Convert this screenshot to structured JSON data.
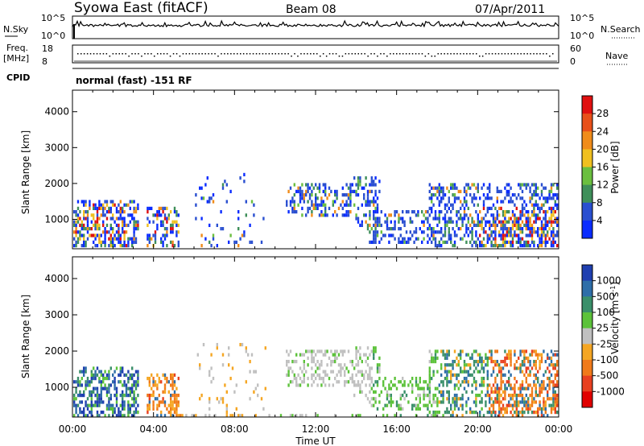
{
  "header": {
    "title": "Syowa East (fitACF)",
    "beam": "Beam 08",
    "date": "07/Apr/2011"
  },
  "top_panels": {
    "nsky_label": "N.Sky",
    "nsky_scale_top": "10^5",
    "nsky_scale_bottom": "10^0",
    "nsearch_label": "N.Search",
    "nsearch_scale_top": "10^5",
    "nsearch_scale_bottom": "10^0",
    "freq_label_line1": "Freq.",
    "freq_label_line2": "[MHz]",
    "freq_scale_top": "18",
    "freq_scale_bottom": "8",
    "nave_label": "Nave",
    "nave_scale_top": "60",
    "nave_scale_bottom": "0",
    "cpid_label": "CPID",
    "cpid_value": "normal (fast) -151 RF"
  },
  "chart_data": [
    {
      "type": "heatmap",
      "name": "power-panel",
      "ylabel": "Slant Range [km]",
      "y_ticks": [
        "1000",
        "2000",
        "3000",
        "4000"
      ],
      "ylim": [
        180,
        4600
      ],
      "xlim": [
        0,
        24
      ],
      "colorbar": {
        "label": "Power [dB]",
        "ticks": [
          "4",
          "8",
          "12",
          "16",
          "20",
          "24",
          "28"
        ],
        "colors": [
          "#0a2cff",
          "#2a4fd0",
          "#3f8f5a",
          "#6bbf3f",
          "#f0c020",
          "#f08c1a",
          "#e8501a",
          "#e01010"
        ]
      }
    },
    {
      "type": "heatmap",
      "name": "velocity-panel",
      "ylabel": "Slant Range [km]",
      "y_ticks": [
        "1000",
        "2000",
        "3000",
        "4000"
      ],
      "ylim": [
        180,
        4600
      ],
      "xlim": [
        0,
        24
      ],
      "xlabel": "Time UT",
      "x_ticks": [
        "00:00",
        "04:00",
        "08:00",
        "12:00",
        "16:00",
        "20:00",
        "00:00"
      ],
      "colorbar": {
        "label": "Velocity [m s",
        "label_sup": "-1",
        "label_end": "]",
        "ticks": [
          "1000",
          "500",
          "100",
          "25",
          "-25",
          "-100",
          "-500",
          "-1000"
        ],
        "colors": [
          "#1f3fb0",
          "#2e6ea8",
          "#3a8f6a",
          "#5cc23a",
          "#c0c0c0",
          "#f5a623",
          "#f07a1a",
          "#e84020",
          "#e00000"
        ]
      }
    }
  ]
}
